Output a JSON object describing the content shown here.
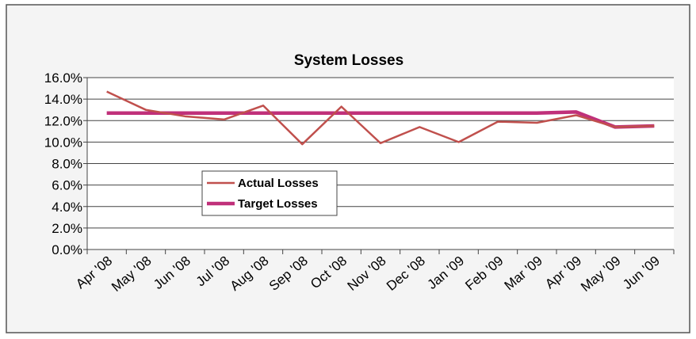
{
  "chart_data": {
    "type": "line",
    "title": "System Losses",
    "categories": [
      "Apr '08",
      "May '08",
      "Jun '08",
      "Jul '08",
      "Aug '08",
      "Sep '08",
      "Oct '08",
      "Nov '08",
      "Dec '08",
      "Jan '09",
      "Feb '09",
      "Mar '09",
      "Apr '09",
      "May '09",
      "Jun '09"
    ],
    "series": [
      {
        "name": "Actual Losses",
        "color": "#c0504d",
        "values": [
          14.7,
          13.0,
          12.4,
          12.1,
          13.4,
          9.8,
          13.3,
          9.9,
          11.4,
          10.0,
          11.9,
          11.8,
          12.5,
          11.4,
          11.5
        ]
      },
      {
        "name": "Target Losses",
        "color": "#c0307a",
        "values": [
          12.7,
          12.7,
          12.7,
          12.7,
          12.7,
          12.7,
          12.7,
          12.7,
          12.7,
          12.7,
          12.7,
          12.7,
          12.8,
          11.4,
          11.5
        ]
      }
    ],
    "ylim": [
      0,
      16
    ],
    "yticks": [
      {
        "value": 0,
        "label": "0.0%"
      },
      {
        "value": 2,
        "label": "2.0%"
      },
      {
        "value": 4,
        "label": "4.0%"
      },
      {
        "value": 6,
        "label": "6.0%"
      },
      {
        "value": 8,
        "label": "8.0%"
      },
      {
        "value": 10,
        "label": "10.0%"
      },
      {
        "value": 12,
        "label": "12.0%"
      },
      {
        "value": 14,
        "label": "14.0%"
      },
      {
        "value": 16,
        "label": "16.0%"
      }
    ],
    "grid": true
  }
}
